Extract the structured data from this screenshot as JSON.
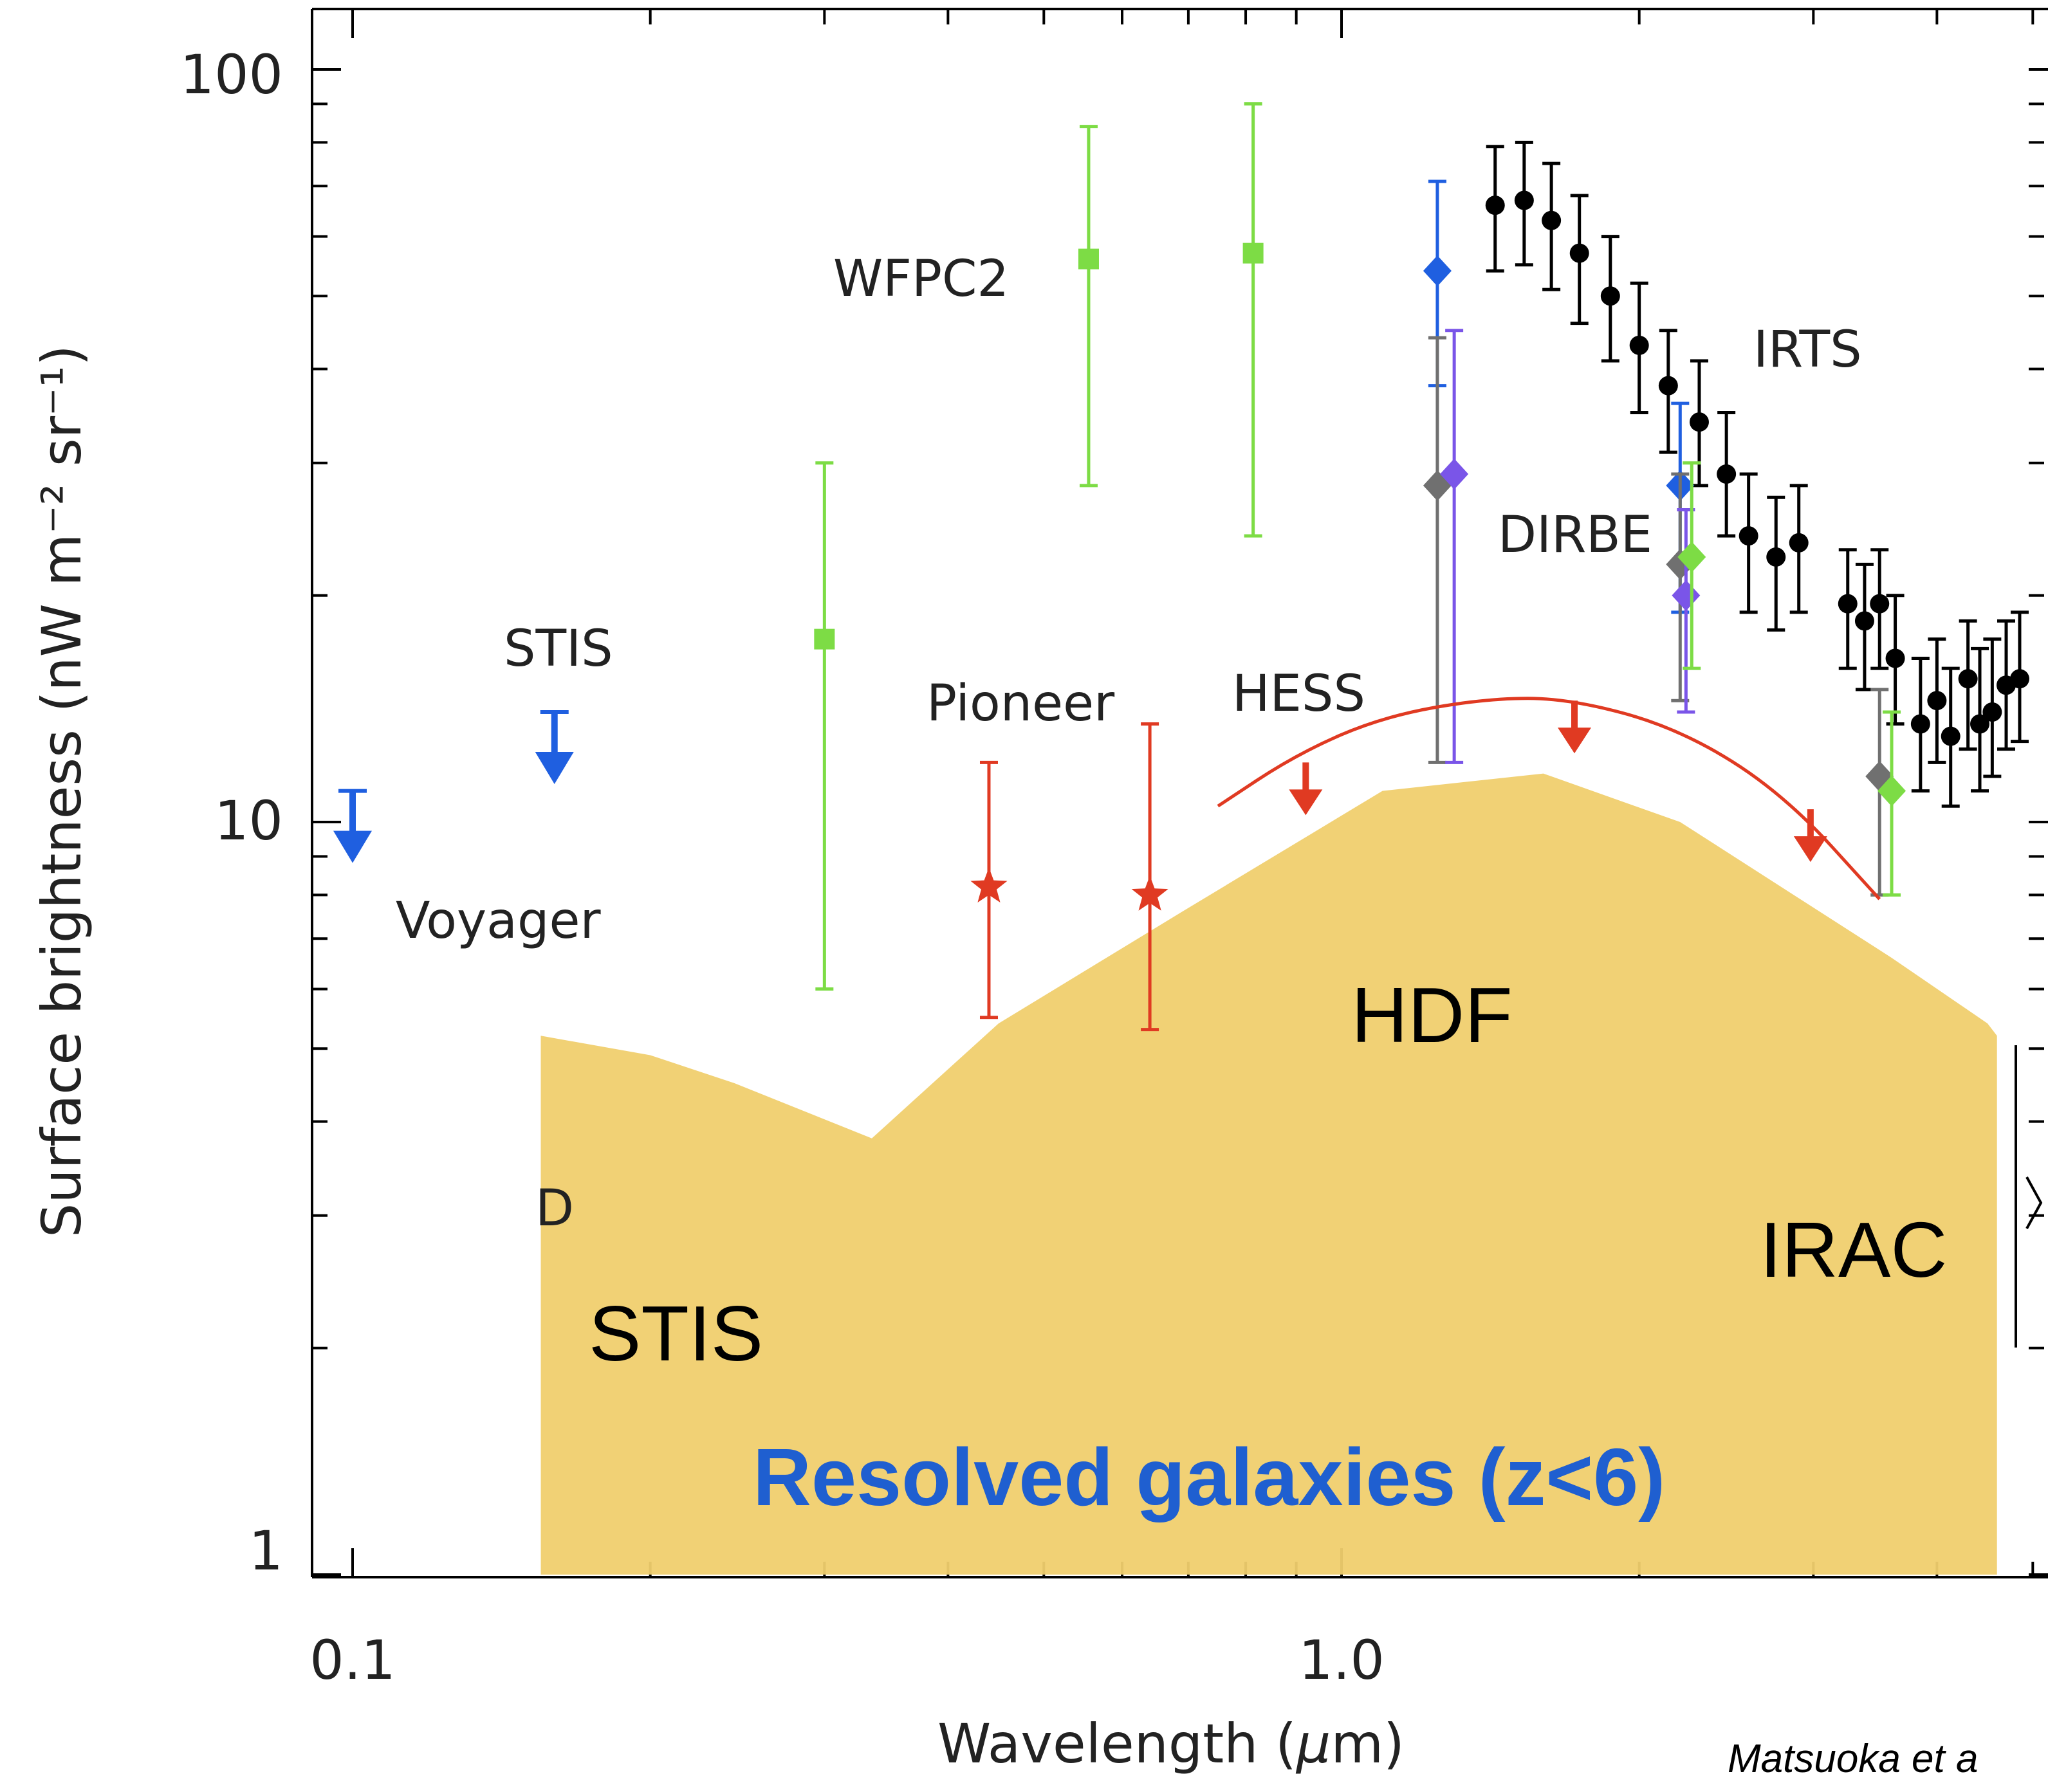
{
  "chart_data": {
    "type": "scatter",
    "xscale": "log",
    "yscale": "log",
    "xlim": [
      0.09,
      5.0
    ],
    "ylim": [
      1,
      110
    ],
    "xlabel": "Wavelength (μm)",
    "ylabel": "Surface brightness (nW m⁻² sr⁻¹)",
    "x_ticks": [
      {
        "value": 0.1,
        "label": "0.1"
      },
      {
        "value": 1.0,
        "label": "1.0"
      }
    ],
    "y_ticks": [
      {
        "value": 1,
        "label": "1"
      },
      {
        "value": 10,
        "label": "10"
      },
      {
        "value": 100,
        "label": "100"
      }
    ],
    "series": [
      {
        "name": "IRTS",
        "color": "#000000",
        "marker": "circle",
        "points": [
          {
            "x": 1.43,
            "y": 66,
            "lo": 54,
            "hi": 79
          },
          {
            "x": 1.53,
            "y": 67,
            "lo": 55,
            "hi": 80
          },
          {
            "x": 1.63,
            "y": 63,
            "lo": 51,
            "hi": 75
          },
          {
            "x": 1.74,
            "y": 57,
            "lo": 46,
            "hi": 68
          },
          {
            "x": 1.87,
            "y": 50,
            "lo": 41,
            "hi": 60
          },
          {
            "x": 2.0,
            "y": 43,
            "lo": 35,
            "hi": 52
          },
          {
            "x": 2.14,
            "y": 38,
            "lo": 31,
            "hi": 45
          },
          {
            "x": 2.3,
            "y": 34,
            "lo": 28,
            "hi": 41
          },
          {
            "x": 2.45,
            "y": 29,
            "lo": 24,
            "hi": 35
          },
          {
            "x": 2.58,
            "y": 24,
            "lo": 19,
            "hi": 29
          },
          {
            "x": 2.75,
            "y": 22.5,
            "lo": 18,
            "hi": 27
          },
          {
            "x": 2.9,
            "y": 23.5,
            "lo": 19,
            "hi": 28
          },
          {
            "x": 3.25,
            "y": 19.5,
            "lo": 16,
            "hi": 23
          },
          {
            "x": 3.38,
            "y": 18.5,
            "lo": 15,
            "hi": 22
          },
          {
            "x": 3.5,
            "y": 19.5,
            "lo": 16,
            "hi": 23
          },
          {
            "x": 3.63,
            "y": 16.5,
            "lo": 13.5,
            "hi": 20
          },
          {
            "x": 3.85,
            "y": 13.5,
            "lo": 11,
            "hi": 16.5
          },
          {
            "x": 4.0,
            "y": 14.5,
            "lo": 12,
            "hi": 17.5
          },
          {
            "x": 4.13,
            "y": 13,
            "lo": 10.5,
            "hi": 16
          },
          {
            "x": 4.3,
            "y": 15.5,
            "lo": 12.5,
            "hi": 18.5
          },
          {
            "x": 4.42,
            "y": 13.5,
            "lo": 11,
            "hi": 17
          },
          {
            "x": 4.55,
            "y": 14,
            "lo": 11.5,
            "hi": 17.5
          },
          {
            "x": 4.7,
            "y": 15.2,
            "lo": 12.5,
            "hi": 18.5
          },
          {
            "x": 4.85,
            "y": 15.5,
            "lo": 12.8,
            "hi": 19
          }
        ]
      },
      {
        "name": "WFPC2",
        "color": "#7ddc45",
        "marker": "square",
        "points": [
          {
            "x": 0.3,
            "y": 17.5,
            "lo": 6.0,
            "hi": 30
          },
          {
            "x": 0.555,
            "y": 56,
            "lo": 28,
            "hi": 84
          },
          {
            "x": 0.814,
            "y": 57,
            "lo": 24,
            "hi": 90
          }
        ]
      },
      {
        "name": "DIRBE",
        "color": "#1f5fe0",
        "marker": "diamond",
        "points": [
          {
            "x": 1.25,
            "y": 54,
            "lo": 38,
            "hi": 71
          },
          {
            "x": 2.2,
            "y": 28,
            "lo": 19,
            "hi": 36
          }
        ]
      },
      {
        "name": "DIRBE (grey)",
        "color": "#707070",
        "marker": "diamond",
        "points": [
          {
            "x": 1.25,
            "y": 28,
            "lo": 12,
            "hi": 44
          },
          {
            "x": 2.2,
            "y": 22,
            "lo": 14.5,
            "hi": 29
          },
          {
            "x": 3.5,
            "y": 11.5,
            "lo": 8,
            "hi": 15
          }
        ]
      },
      {
        "name": "DIRBE (violet)",
        "color": "#7a55e8",
        "marker": "diamond",
        "points": [
          {
            "x": 1.3,
            "y": 29,
            "lo": 12,
            "hi": 45
          },
          {
            "x": 2.23,
            "y": 20,
            "lo": 14,
            "hi": 26
          }
        ]
      },
      {
        "name": "DIRBE (green)",
        "color": "#7ddc45",
        "marker": "diamond",
        "points": [
          {
            "x": 2.26,
            "y": 22.5,
            "lo": 16,
            "hi": 30
          },
          {
            "x": 3.6,
            "y": 11,
            "lo": 8,
            "hi": 14
          }
        ]
      },
      {
        "name": "Pioneer",
        "color": "#e03a22",
        "marker": "star",
        "points": [
          {
            "x": 0.44,
            "y": 8.2,
            "lo": 5.5,
            "hi": 12
          },
          {
            "x": 0.64,
            "y": 8.0,
            "lo": 5.3,
            "hi": 13.5
          }
        ]
      },
      {
        "name": "Voyager",
        "color": "#1f5fe0",
        "marker": "upper-limit",
        "points": [
          {
            "x": 0.1,
            "y": 11
          }
        ]
      },
      {
        "name": "STIS",
        "color": "#1f5fe0",
        "marker": "upper-limit",
        "points": [
          {
            "x": 0.16,
            "y": 14
          }
        ]
      },
      {
        "name": "HESS",
        "color": "#e03a22",
        "marker": "upper-limit-curve",
        "curve": [
          {
            "x": 0.75,
            "y": 10.5
          },
          {
            "x": 0.9,
            "y": 12.3
          },
          {
            "x": 1.1,
            "y": 13.8
          },
          {
            "x": 1.4,
            "y": 14.6
          },
          {
            "x": 1.7,
            "y": 14.6
          },
          {
            "x": 2.2,
            "y": 13.3
          },
          {
            "x": 2.8,
            "y": 10.9
          },
          {
            "x": 3.5,
            "y": 7.9
          }
        ],
        "arrows": [
          {
            "x": 0.92,
            "y": 12.0
          },
          {
            "x": 1.72,
            "y": 14.5
          },
          {
            "x": 2.98,
            "y": 10.4
          }
        ]
      },
      {
        "name": "Resolved galaxies (z<6)",
        "color": "#f0cf6e",
        "marker": "area",
        "upper": [
          {
            "x": 0.155,
            "y": 5.2
          },
          {
            "x": 0.2,
            "y": 4.9
          },
          {
            "x": 0.243,
            "y": 4.5
          },
          {
            "x": 0.335,
            "y": 3.8
          },
          {
            "x": 0.45,
            "y": 5.4
          },
          {
            "x": 0.69,
            "y": 7.6
          },
          {
            "x": 1.1,
            "y": 11.0
          },
          {
            "x": 1.6,
            "y": 11.6
          },
          {
            "x": 2.2,
            "y": 10.0
          },
          {
            "x": 3.6,
            "y": 6.6
          },
          {
            "x": 4.5,
            "y": 5.4
          },
          {
            "x": 4.6,
            "y": 5.2
          }
        ]
      }
    ],
    "annotations": [
      "WFPC2",
      "IRTS",
      "DIRBE",
      "STIS",
      "Pioneer",
      "HESS",
      "Voyager",
      "HDF",
      "IRAC",
      "STIS",
      "Resolved galaxies (z<6)",
      "Matsuoka et a"
    ]
  },
  "labels": {
    "wfpc2": "WFPC2",
    "irts": "IRTS",
    "dirbe": "DIRBE",
    "stis_top": "STIS",
    "pioneer": "Pioneer",
    "hess": "HESS",
    "voyager": "Voyager",
    "hdf": "HDF",
    "irac": "IRAC",
    "stis_area": "STIS",
    "resolved": "Resolved galaxies (z<6)",
    "credit": "Matsuoka et a",
    "hidden_d": "D"
  },
  "axes": {
    "xlabel": "Wavelength (",
    "xlabel_mu": "μ",
    "xlabel_tail": "m)",
    "ylabel": "Surface brightness (nW m⁻² sr⁻¹)"
  }
}
